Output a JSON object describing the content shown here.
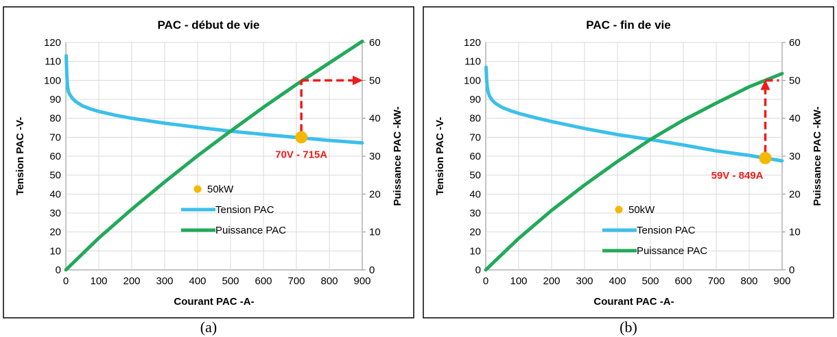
{
  "chart_data": [
    {
      "type": "line",
      "caption": "(a)",
      "title": "PAC - début de vie",
      "xlabel": "Courant PAC -A-",
      "ylabel": "Tension PAC  -V-",
      "y2label": "Puissance PAC -kW-",
      "xlim": [
        0,
        900
      ],
      "ylim": [
        0,
        120
      ],
      "y2lim": [
        0,
        60
      ],
      "x_ticks": [
        0,
        100,
        200,
        300,
        400,
        500,
        600,
        700,
        800,
        900
      ],
      "y_ticks": [
        0,
        10,
        20,
        30,
        40,
        50,
        60,
        70,
        80,
        90,
        100,
        110,
        120
      ],
      "y2_ticks": [
        0,
        10,
        20,
        30,
        40,
        50,
        60
      ],
      "grid": true,
      "legend_position": "bottom-right",
      "series": [
        {
          "name": "Tension PAC",
          "axis": "left",
          "color": "#3cbfea",
          "x": [
            1,
            3,
            5,
            8,
            12,
            20,
            30,
            50,
            75,
            100,
            150,
            200,
            300,
            400,
            500,
            600,
            700,
            800,
            900
          ],
          "values": [
            113,
            103,
            97,
            94,
            92.5,
            90.5,
            88.8,
            86.6,
            84.9,
            83.6,
            81.6,
            80,
            77.4,
            75.2,
            73.2,
            71.5,
            69.9,
            68.3,
            67
          ]
        },
        {
          "name": "Puissance PAC",
          "axis": "right",
          "color": "#22a95a",
          "x": [
            0,
            100,
            200,
            300,
            400,
            500,
            600,
            700,
            800,
            900
          ],
          "values": [
            0,
            8.4,
            16,
            23.2,
            30.1,
            36.6,
            42.9,
            48.9,
            54.6,
            60.3
          ]
        },
        {
          "name": "50kW",
          "axis": "left",
          "color": "#f5b800",
          "x": [
            715
          ],
          "values": [
            70
          ]
        }
      ],
      "annotation": {
        "text": "70V - 715A",
        "color": "#ee1c1c",
        "x": 715,
        "y": 70,
        "arrow_to_y2": 50
      }
    },
    {
      "type": "line",
      "caption": "(b)",
      "title": "PAC - fin de vie",
      "xlabel": "Courant PAC -A-",
      "ylabel": "Tension PAC  -V-",
      "y2label": "Puissance PAC -kW-",
      "xlim": [
        0,
        900
      ],
      "ylim": [
        0,
        120
      ],
      "y2lim": [
        0,
        60
      ],
      "x_ticks": [
        0,
        100,
        200,
        300,
        400,
        500,
        600,
        700,
        800,
        900
      ],
      "y_ticks": [
        0,
        10,
        20,
        30,
        40,
        50,
        60,
        70,
        80,
        90,
        100,
        110,
        120
      ],
      "y2_ticks": [
        0,
        10,
        20,
        30,
        40,
        50,
        60
      ],
      "grid": true,
      "legend_position": "bottom-right",
      "series": [
        {
          "name": "Tension PAC",
          "axis": "left",
          "color": "#3cbfea",
          "x": [
            1,
            3,
            5,
            8,
            12,
            20,
            30,
            50,
            75,
            100,
            150,
            200,
            300,
            400,
            500,
            600,
            700,
            800,
            900
          ],
          "values": [
            107,
            100,
            96,
            93.5,
            91.5,
            89.5,
            87.8,
            85.7,
            84,
            82.6,
            80.3,
            78.3,
            74.6,
            71.4,
            68.8,
            65.9,
            62.8,
            60.4,
            57.5
          ]
        },
        {
          "name": "Puissance PAC",
          "axis": "right",
          "color": "#22a95a",
          "x": [
            0,
            100,
            200,
            300,
            400,
            500,
            600,
            700,
            800,
            900
          ],
          "values": [
            0,
            8.3,
            15.7,
            22.4,
            28.6,
            34.4,
            39.5,
            44,
            48.3,
            51.8
          ]
        },
        {
          "name": "50kW",
          "axis": "left",
          "color": "#f5b800",
          "x": [
            849
          ],
          "values": [
            59
          ]
        }
      ],
      "annotation": {
        "text": "59V - 849A",
        "color": "#ee1c1c",
        "x": 849,
        "y": 59,
        "arrow_to_y2": 50
      }
    }
  ]
}
